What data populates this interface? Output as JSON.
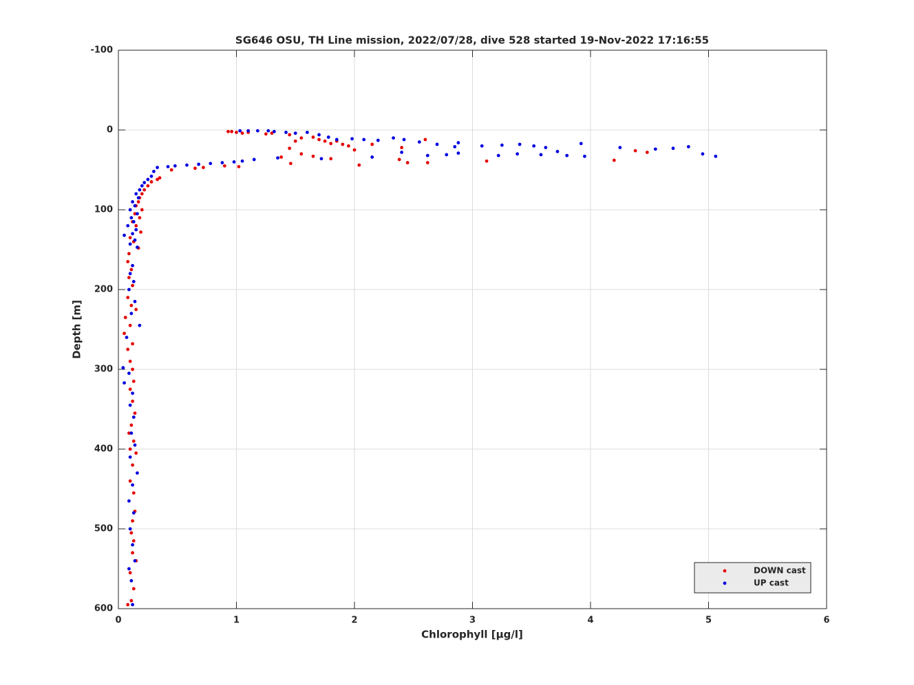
{
  "chart_data": {
    "type": "scatter",
    "title": "SG646 OSU, TH Line mission, 2022/07/28, dive 528 started 19-Nov-2022 17:16:55",
    "x_label": "Chlorophyll [μg/l]",
    "y_label": "Depth [m]",
    "xlim": [
      0,
      6
    ],
    "xticks": [
      0,
      1,
      2,
      3,
      4,
      5,
      6
    ],
    "ylim": [
      -100,
      600
    ],
    "yticks": [
      -100,
      0,
      100,
      200,
      300,
      400,
      500,
      600
    ],
    "y_reversed": true,
    "grid": true,
    "legend": "lower right",
    "series": [
      {
        "name": "DOWN cast",
        "color": "#e60000",
        "x": [
          0.93,
          0.96,
          1.0,
          1.05,
          1.1,
          1.25,
          1.3,
          1.45,
          1.5,
          1.55,
          1.65,
          1.7,
          1.75,
          1.8,
          1.85,
          1.9,
          1.95,
          2.0,
          2.15,
          2.4,
          2.6,
          1.45,
          1.55,
          1.65,
          1.8,
          1.38,
          2.38,
          2.45,
          2.62,
          3.12,
          4.2,
          4.38,
          4.48,
          1.46,
          2.04,
          1.02,
          0.9,
          0.72,
          0.65,
          0.45,
          0.35,
          0.33,
          0.28,
          0.25,
          0.22,
          0.2,
          0.18,
          0.17,
          0.15,
          0.2,
          0.14,
          0.18,
          0.12,
          0.15,
          0.19,
          0.1,
          0.13,
          0.17,
          0.09,
          0.08,
          0.11,
          0.09,
          0.12,
          0.08,
          0.11,
          0.15,
          0.06,
          0.1,
          0.05,
          0.12,
          0.08,
          0.1,
          0.12,
          0.13,
          0.1,
          0.12,
          0.14,
          0.11,
          0.09,
          0.13,
          0.1,
          0.15,
          0.12,
          0.1,
          0.13,
          0.14,
          0.12,
          0.11,
          0.13,
          0.12,
          0.15,
          0.1,
          0.13,
          0.11,
          0.08
        ],
        "values": [
          2,
          2,
          3,
          4,
          3,
          5,
          4,
          6,
          14,
          10,
          9,
          12,
          14,
          17,
          14,
          18,
          20,
          25,
          18,
          22,
          12,
          23,
          30,
          33,
          36,
          34,
          37,
          41,
          41,
          39,
          38,
          26,
          28,
          42,
          44,
          46,
          45,
          47,
          48,
          50,
          60,
          62,
          65,
          70,
          75,
          80,
          85,
          90,
          95,
          100,
          105,
          110,
          115,
          120,
          128,
          135,
          140,
          148,
          155,
          165,
          175,
          185,
          195,
          210,
          220,
          225,
          235,
          245,
          255,
          268,
          275,
          290,
          300,
          315,
          325,
          340,
          355,
          370,
          380,
          390,
          400,
          405,
          420,
          440,
          455,
          478,
          490,
          505,
          515,
          530,
          540,
          555,
          575,
          590,
          595
        ]
      },
      {
        "name": "UP cast",
        "color": "#0000e0",
        "x": [
          1.03,
          1.1,
          1.18,
          1.27,
          1.32,
          1.42,
          1.5,
          1.6,
          1.7,
          1.78,
          1.85,
          1.98,
          2.08,
          2.2,
          2.33,
          2.42,
          2.55,
          2.7,
          2.88,
          2.85,
          3.08,
          3.25,
          3.4,
          3.52,
          3.62,
          3.72,
          3.92,
          4.25,
          4.55,
          4.7,
          4.83,
          4.95,
          5.06,
          3.95,
          3.8,
          3.58,
          3.38,
          3.22,
          2.88,
          2.78,
          2.62,
          2.4,
          2.15,
          1.72,
          1.35,
          1.15,
          1.05,
          0.98,
          0.88,
          0.78,
          0.68,
          0.58,
          0.48,
          0.42,
          0.33,
          0.3,
          0.28,
          0.25,
          0.22,
          0.2,
          0.18,
          0.15,
          0.17,
          0.12,
          0.14,
          0.1,
          0.16,
          0.11,
          0.13,
          0.08,
          0.15,
          0.12,
          0.05,
          0.14,
          0.1,
          0.16,
          0.12,
          0.1,
          0.13,
          0.09,
          0.14,
          0.11,
          0.18,
          0.07,
          0.04,
          0.09,
          0.05,
          0.12,
          0.1,
          0.13,
          0.11,
          0.14,
          0.1,
          0.16,
          0.12,
          0.09,
          0.13,
          0.1,
          0.12,
          0.14,
          0.09,
          0.11,
          0.12
        ],
        "values": [
          1,
          1,
          1,
          1,
          2,
          3,
          4,
          3,
          6,
          9,
          12,
          11,
          12,
          13,
          10,
          12,
          15,
          18,
          16,
          21,
          20,
          19,
          18,
          20,
          22,
          27,
          17,
          22,
          24,
          23,
          21,
          30,
          33,
          33,
          32,
          31,
          30,
          32,
          29,
          31,
          32,
          28,
          34,
          36,
          35,
          37,
          39,
          40,
          41,
          42,
          43,
          44,
          45,
          46,
          47,
          52,
          58,
          62,
          66,
          70,
          75,
          80,
          85,
          90,
          95,
          100,
          105,
          110,
          115,
          120,
          125,
          130,
          132,
          138,
          143,
          147,
          170,
          180,
          190,
          200,
          215,
          230,
          245,
          260,
          298,
          305,
          317,
          330,
          345,
          360,
          380,
          395,
          410,
          430,
          445,
          465,
          480,
          500,
          520,
          540,
          550,
          565,
          595
        ]
      }
    ]
  }
}
